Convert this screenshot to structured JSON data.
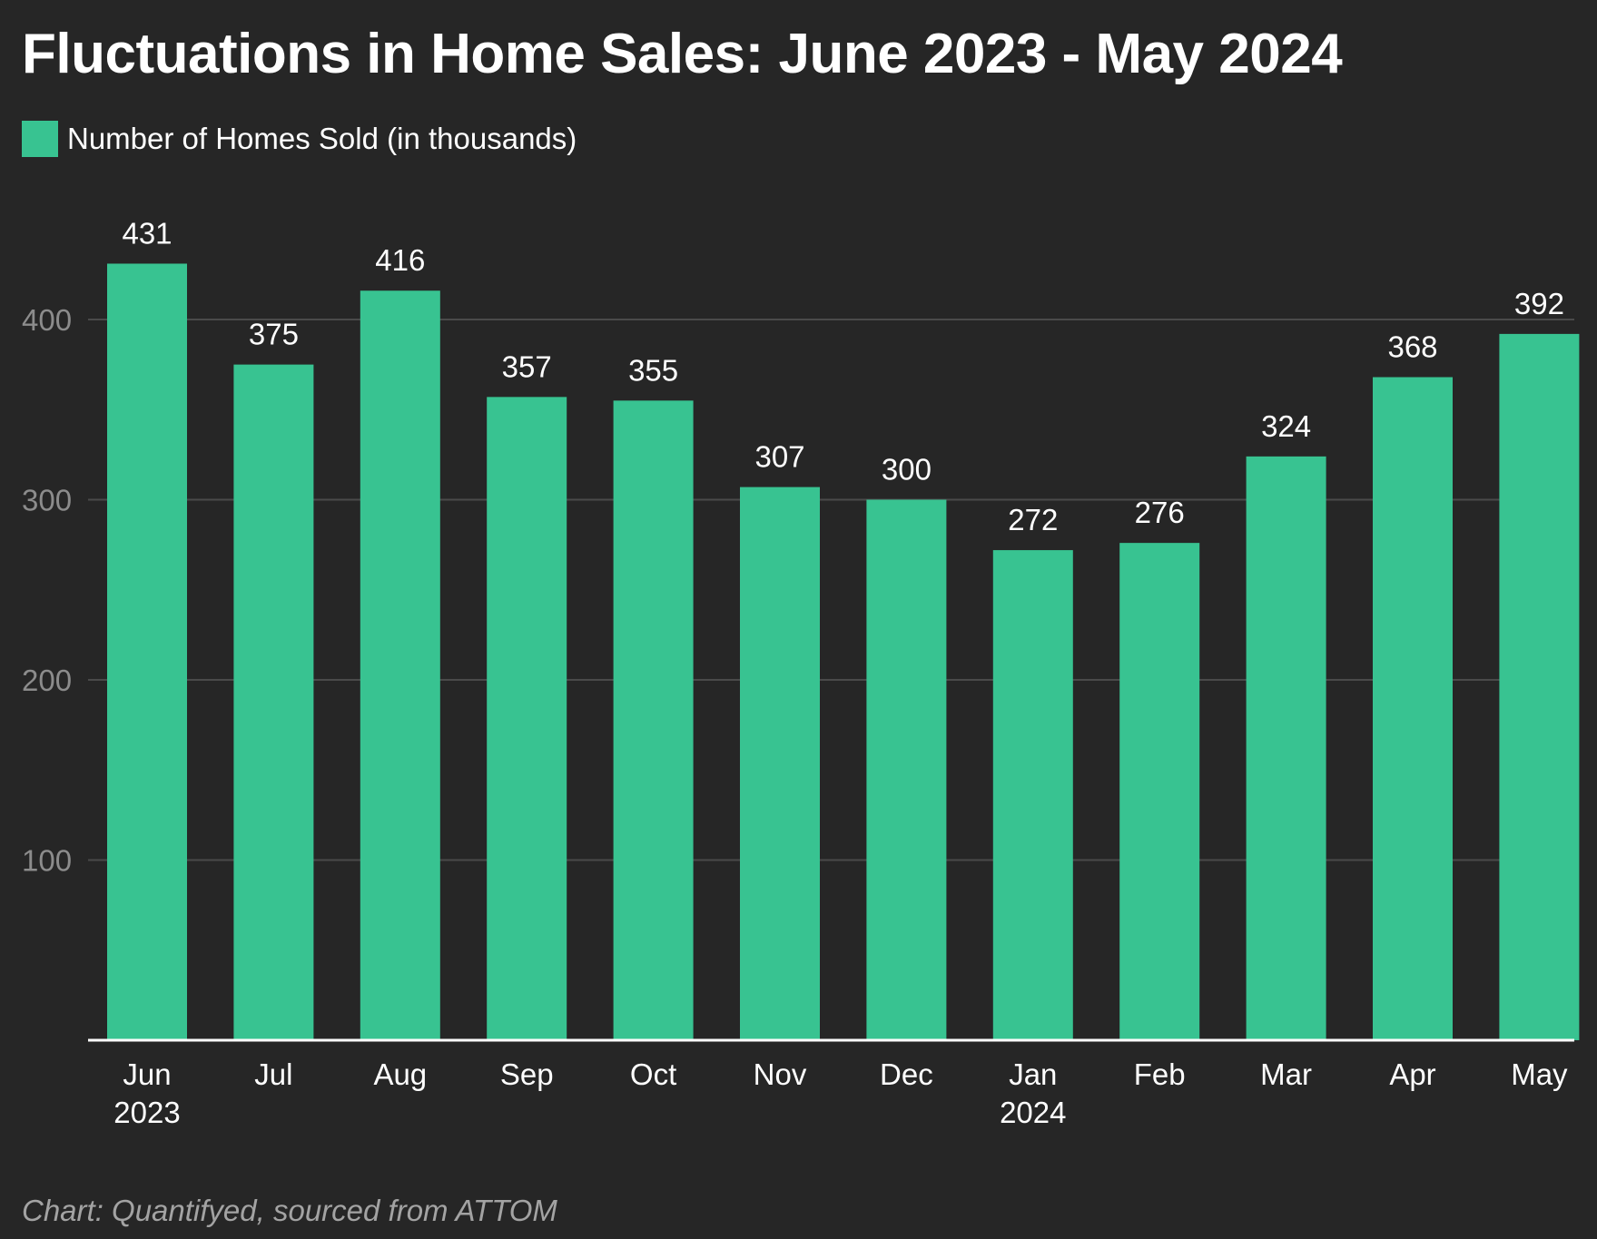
{
  "title": "Fluctuations in Home Sales: June 2023 - May 2024",
  "legend": {
    "label": "Number of Homes Sold (in thousands)"
  },
  "footer": "Chart: Quantifyed, sourced from ATTOM",
  "colors": {
    "background": "#262626",
    "bar": "#38c391",
    "grid": "#4a4a4a",
    "axis": "#ffffff",
    "tick_text": "#8c8c8c",
    "label_text": "#ffffff"
  },
  "chart_data": {
    "type": "bar",
    "categories": [
      "Jun",
      "Jul",
      "Aug",
      "Sep",
      "Oct",
      "Nov",
      "Dec",
      "Jan",
      "Feb",
      "Mar",
      "Apr",
      "May"
    ],
    "category_sublabels": [
      "2023",
      "",
      "",
      "",
      "",
      "",
      "",
      "2024",
      "",
      "",
      "",
      ""
    ],
    "series": [
      {
        "name": "Number of Homes Sold (in thousands)",
        "values": [
          431,
          375,
          416,
          357,
          355,
          307,
          300,
          272,
          276,
          324,
          368,
          392
        ]
      }
    ],
    "ylim": [
      0,
      431
    ],
    "yticks": [
      100,
      200,
      300,
      400
    ],
    "grid": true,
    "legend_position": "top-left",
    "xlabel": "",
    "ylabel": ""
  }
}
